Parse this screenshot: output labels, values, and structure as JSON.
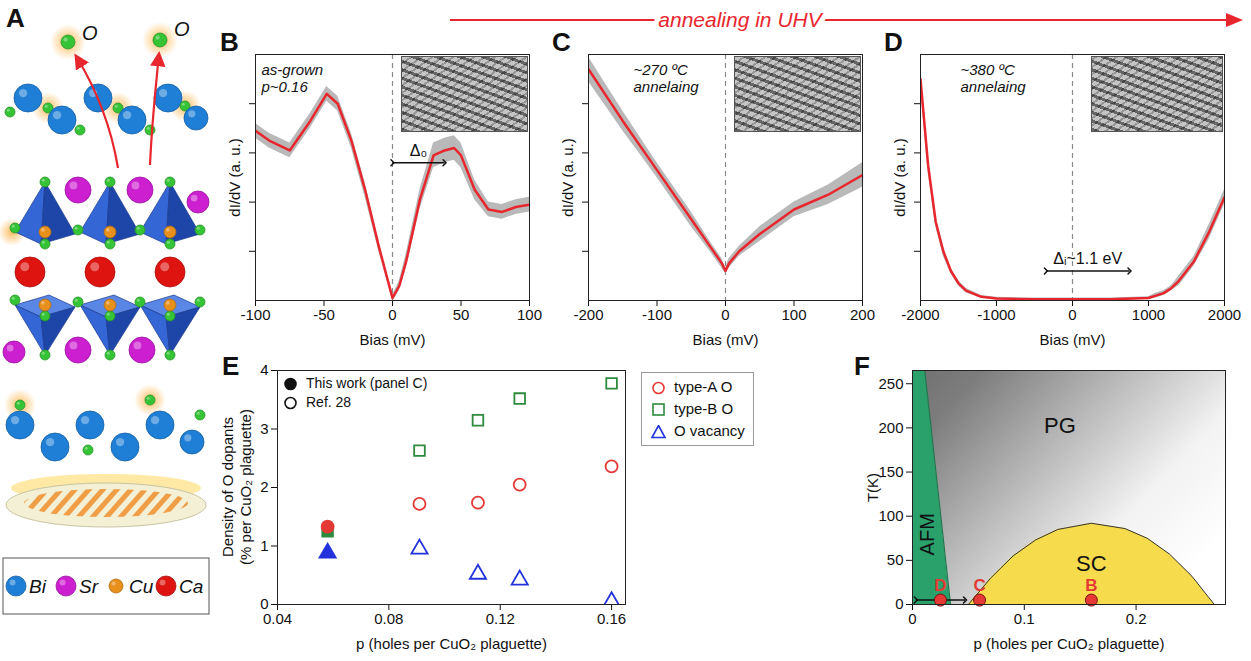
{
  "header": {
    "text": "annealing in UHV"
  },
  "diagram": {
    "panel": "A",
    "labels": [
      "O",
      "O"
    ],
    "legend": [
      {
        "name": "Bi",
        "color": "#1f7fd6"
      },
      {
        "name": "Sr",
        "color": "#cc1fd0"
      },
      {
        "name": "Cu",
        "color": "#e8901c"
      },
      {
        "name": "Ca",
        "color": "#dd1410"
      }
    ]
  },
  "chart_data": [
    {
      "panel": "B",
      "type": "line",
      "annotation": [
        "as-grown",
        "p~0.16"
      ],
      "xlabel": "Bias (mV)",
      "ylabel": "dI/dV (a. u.)",
      "x": [
        -100,
        -90,
        -75,
        -60,
        -48,
        -40,
        -30,
        -20,
        -10,
        0,
        5,
        10,
        20,
        30,
        38,
        45,
        50,
        60,
        70,
        80,
        90,
        100
      ],
      "values": [
        0.69,
        0.65,
        0.61,
        0.73,
        0.84,
        0.8,
        0.65,
        0.45,
        0.22,
        0.01,
        0.06,
        0.16,
        0.41,
        0.59,
        0.61,
        0.62,
        0.59,
        0.45,
        0.37,
        0.36,
        0.38,
        0.39
      ],
      "errors": [
        0.03,
        0.03,
        0.03,
        0.03,
        0.03,
        0.03,
        0.03,
        0.03,
        0.02,
        0.01,
        0.02,
        0.03,
        0.04,
        0.05,
        0.05,
        0.05,
        0.05,
        0.04,
        0.03,
        0.03,
        0.03,
        0.03
      ],
      "color": "#e8262d",
      "xlim": [
        -100,
        100
      ],
      "xticks": [
        -100,
        -50,
        0,
        50,
        100
      ],
      "ylim": [
        0,
        1
      ],
      "yticks": [
        0.2,
        0.4,
        0.6,
        0.8
      ],
      "tick_labels": "x",
      "vline": 0,
      "gap": {
        "label": "Δ₀",
        "x": [
          0,
          38
        ],
        "y": 0.56
      }
    },
    {
      "panel": "C",
      "type": "line",
      "annotation": [
        "~270 ºC",
        "annelaing"
      ],
      "xlabel": "Bias (mV)",
      "ylabel": "dI/dV (a. u.)",
      "x": [
        -200,
        -150,
        -100,
        -50,
        -20,
        -5,
        0,
        5,
        20,
        50,
        100,
        150,
        200
      ],
      "values": [
        0.94,
        0.73,
        0.53,
        0.33,
        0.21,
        0.15,
        0.12,
        0.15,
        0.2,
        0.27,
        0.37,
        0.43,
        0.51
      ],
      "errors": [
        0.05,
        0.04,
        0.03,
        0.03,
        0.02,
        0.02,
        0.01,
        0.02,
        0.02,
        0.03,
        0.03,
        0.04,
        0.05
      ],
      "color": "#e8262d",
      "xlim": [
        -200,
        200
      ],
      "xticks": [
        -200,
        -100,
        0,
        100,
        200
      ],
      "ylim": [
        0,
        1
      ],
      "yticks": [
        0.2,
        0.4,
        0.6,
        0.8
      ],
      "tick_labels": "x",
      "vline": 0
    },
    {
      "panel": "D",
      "type": "line",
      "annotation": [
        "~380 ºC",
        "annelaing"
      ],
      "xlabel": "Bias (mV)",
      "ylabel": "dI/dV (a. u.)",
      "x": [
        -2000,
        -1900,
        -1800,
        -1700,
        -1600,
        -1500,
        -1400,
        -1200,
        -1000,
        -500,
        0,
        500,
        1000,
        1100,
        1200,
        1300,
        1400,
        1500,
        1600,
        1800,
        2000
      ],
      "values": [
        0.9,
        0.55,
        0.32,
        0.2,
        0.12,
        0.07,
        0.04,
        0.015,
        0.008,
        0.005,
        0.005,
        0.005,
        0.01,
        0.02,
        0.03,
        0.05,
        0.08,
        0.12,
        0.16,
        0.28,
        0.42
      ],
      "errors": [
        0.03,
        0.03,
        0.02,
        0.02,
        0.01,
        0.01,
        0.01,
        0.005,
        0.005,
        0.005,
        0.005,
        0.005,
        0.005,
        0.01,
        0.01,
        0.01,
        0.02,
        0.02,
        0.02,
        0.03,
        0.03
      ],
      "color": "#e8262d",
      "xlim": [
        -2000,
        2000
      ],
      "xticks": [
        -2000,
        -1000,
        0,
        1000,
        2000
      ],
      "ylim": [
        0,
        1
      ],
      "yticks": [
        0.2,
        0.4,
        0.6,
        0.8
      ],
      "tick_labels": "x",
      "vline": 0,
      "gap": {
        "label": "Δᵢ~1.1 eV",
        "x": [
          -350,
          750
        ],
        "y": 0.12
      }
    },
    {
      "panel": "E",
      "type": "scatter",
      "xlabel": "p (holes per CuO₂ plaguette)",
      "ylabel": "Density of O dopants (% per CuO₂ plaguette)",
      "x": [
        0.058,
        0.091,
        0.112,
        0.127,
        0.16
      ],
      "fill": [
        "filled",
        "open",
        "open",
        "open",
        "open"
      ],
      "marker_legend": {
        "filled": "This work (panel C)",
        "open": "Ref. 28"
      },
      "series": [
        {
          "name": "type-A O",
          "color": "#e53935",
          "marker": "circle",
          "values": [
            1.33,
            1.72,
            1.74,
            2.05,
            2.36
          ]
        },
        {
          "name": "type-B O",
          "color": "#2e8b3e",
          "marker": "square",
          "values": [
            1.25,
            2.63,
            3.15,
            3.52,
            3.78
          ]
        },
        {
          "name": "O vacancy",
          "color": "#2233dd",
          "marker": "triangle",
          "values": [
            0.88,
            0.95,
            0.52,
            0.42,
            0.05
          ]
        }
      ],
      "xlim": [
        0.04,
        0.165
      ],
      "xticks": [
        0.04,
        0.08,
        0.12,
        0.16
      ],
      "ylim": [
        0,
        4
      ],
      "yticks": [
        0,
        1,
        2,
        3,
        4
      ],
      "legend": "right"
    },
    {
      "panel": "F",
      "type": "area",
      "xlabel": "p (holes per CuO₂ plaguette)",
      "ylabel": "T(K)",
      "xlim": [
        0,
        0.28
      ],
      "xticks": [
        0,
        0.1,
        0.2
      ],
      "ylim": [
        0,
        265
      ],
      "yticks": [
        0,
        50,
        100,
        150,
        200,
        250
      ],
      "regions": [
        {
          "name": "PG",
          "color": "#7d7d7d"
        },
        {
          "name": "AFM",
          "color": "#2aa06a",
          "orientation": "horizontal",
          "x": [
            0.034,
            0.011
          ],
          "y": [
            0,
            265
          ]
        },
        {
          "name": "SC",
          "color": "#f6dc4c",
          "x": [
            0.05,
            0.07,
            0.09,
            0.11,
            0.13,
            0.16,
            0.19,
            0.21,
            0.23,
            0.25,
            0.27
          ],
          "y": [
            0,
            30,
            55,
            73,
            85,
            92,
            86,
            75,
            57,
            32,
            0
          ]
        }
      ],
      "points": {
        "labels": [
          "D",
          "C",
          "B"
        ],
        "x": [
          0.025,
          0.06,
          0.16
        ],
        "y": [
          5,
          5,
          5
        ],
        "color": "#e53935"
      },
      "range_arrow": {
        "x": [
          0.003,
          0.047
        ],
        "y": 5
      }
    }
  ]
}
